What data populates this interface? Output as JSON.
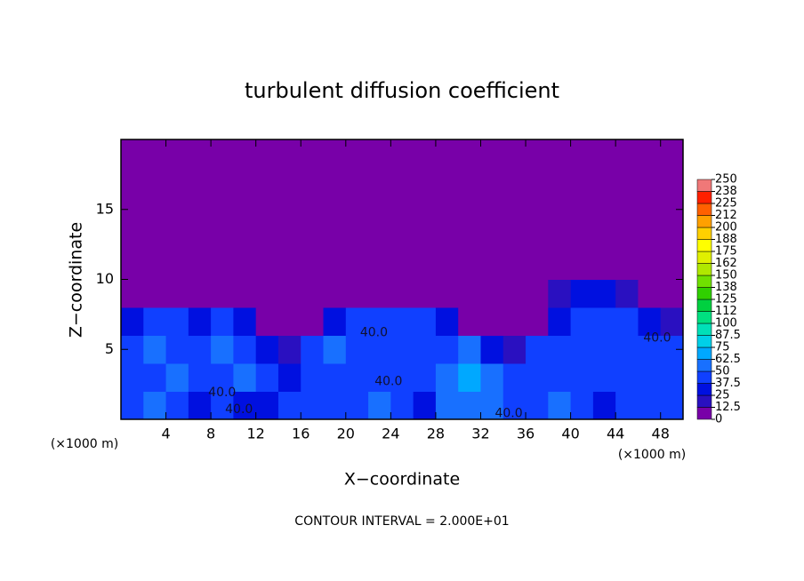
{
  "chart_data": {
    "type": "heatmap",
    "title": "turbulent diffusion coefficient",
    "x_label": "X−coordinate",
    "y_label": "Z−coordinate",
    "x_unit_label": "(×1000 m)",
    "x_unit_label_right": "(×1000 m)",
    "footer": "CONTOUR INTERVAL = 2.000E+01",
    "xlim": [
      0,
      50
    ],
    "ylim": [
      0,
      20
    ],
    "xticks": [
      4,
      8,
      12,
      16,
      20,
      24,
      28,
      32,
      36,
      40,
      44,
      48
    ],
    "yticks": [
      5,
      10,
      15
    ],
    "x": [
      1,
      3,
      5,
      7,
      9,
      11,
      13,
      15,
      17,
      19,
      21,
      23,
      25,
      27,
      29,
      31,
      33,
      35,
      37,
      39,
      41,
      43,
      45,
      47,
      49
    ],
    "y": [
      1,
      3,
      5,
      7,
      9,
      11,
      13,
      15,
      17,
      19
    ],
    "values": [
      [
        45,
        55,
        40,
        35,
        40,
        30,
        35,
        40,
        45,
        40,
        40,
        55,
        40,
        35,
        50,
        60,
        55,
        40,
        45,
        50,
        40,
        35,
        40,
        45,
        40
      ],
      [
        40,
        45,
        50,
        45,
        40,
        50,
        45,
        35,
        40,
        45,
        40,
        40,
        40,
        40,
        55,
        65,
        50,
        45,
        40,
        40,
        45,
        40,
        40,
        45,
        40
      ],
      [
        40,
        50,
        40,
        45,
        50,
        40,
        35,
        15,
        40,
        50,
        45,
        40,
        40,
        45,
        40,
        50,
        25,
        20,
        45,
        40,
        45,
        40,
        40,
        45,
        40
      ],
      [
        30,
        45,
        40,
        35,
        40,
        30,
        10,
        0,
        0,
        35,
        45,
        40,
        45,
        40,
        30,
        10,
        0,
        0,
        0,
        35,
        40,
        45,
        40,
        35,
        15
      ],
      [
        0,
        0,
        0,
        0,
        0,
        0,
        0,
        0,
        0,
        0,
        0,
        0,
        0,
        0,
        0,
        0,
        0,
        0,
        0,
        20,
        30,
        30,
        20,
        0,
        0
      ],
      [
        0,
        0,
        0,
        0,
        0,
        0,
        0,
        0,
        0,
        0,
        0,
        0,
        0,
        0,
        0,
        0,
        0,
        0,
        0,
        0,
        0,
        0,
        0,
        0,
        0
      ],
      [
        0,
        0,
        0,
        0,
        0,
        0,
        0,
        0,
        0,
        0,
        0,
        0,
        0,
        0,
        0,
        0,
        0,
        0,
        0,
        0,
        0,
        0,
        0,
        0,
        0
      ],
      [
        0,
        0,
        0,
        0,
        0,
        0,
        0,
        0,
        0,
        0,
        0,
        0,
        0,
        0,
        0,
        0,
        0,
        0,
        0,
        0,
        0,
        0,
        0,
        0,
        0
      ],
      [
        0,
        0,
        0,
        0,
        0,
        0,
        0,
        0,
        0,
        0,
        0,
        0,
        0,
        0,
        0,
        0,
        0,
        0,
        0,
        0,
        0,
        0,
        0,
        0,
        0
      ],
      [
        0,
        0,
        0,
        0,
        0,
        0,
        0,
        0,
        0,
        0,
        0,
        0,
        0,
        0,
        0,
        0,
        0,
        0,
        0,
        0,
        0,
        0,
        0,
        0,
        0
      ]
    ],
    "colorbar_ticks": [
      0,
      12.5,
      25,
      37.5,
      50,
      62.5,
      75,
      87.5,
      100,
      {
        "value": 112.5,
        "label": "112"
      },
      125,
      {
        "value": 137.5,
        "label": "138"
      },
      150,
      {
        "value": 162.5,
        "label": "162"
      },
      175,
      {
        "value": 187.5,
        "label": "188"
      },
      200,
      {
        "value": 212.5,
        "label": "212"
      },
      225,
      {
        "value": 237.5,
        "label": "238"
      },
      250
    ],
    "colorscale": [
      "#7800a8",
      "#2a10c0",
      "#0010e0",
      "#1040ff",
      "#1870ff",
      "#00a8ff",
      "#00d0e8",
      "#00e0b8",
      "#00e080",
      "#00d040",
      "#30d000",
      "#70e000",
      "#b0e800",
      "#e0f000",
      "#ffff00",
      "#ffd000",
      "#ffa000",
      "#ff6000",
      "#ff2000",
      "#f07878"
    ],
    "annotations": [
      {
        "text": "40.0",
        "x": 9,
        "y": 1.9
      },
      {
        "text": "40.0",
        "x": 10.5,
        "y": 0.7
      },
      {
        "text": "40.0",
        "x": 22.5,
        "y": 6.2
      },
      {
        "text": "40.0",
        "x": 23.8,
        "y": 2.7
      },
      {
        "text": "40.0",
        "x": 34.5,
        "y": 0.4
      },
      {
        "text": "40.0",
        "x": 47.7,
        "y": 5.8
      }
    ]
  }
}
